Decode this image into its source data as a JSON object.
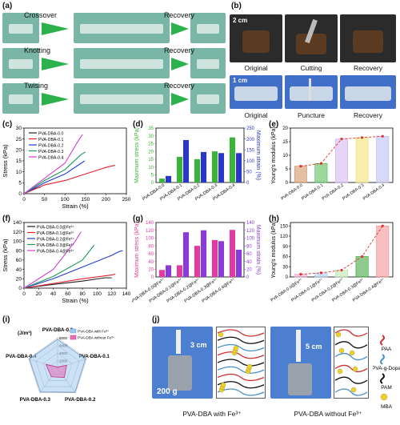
{
  "panel_letters": [
    "(a)",
    "(b)",
    "(c)",
    "(d)",
    "(e)",
    "(f)",
    "(g)",
    "(h)",
    "(i)",
    "(j)"
  ],
  "panel_a": {
    "rows": [
      {
        "left": "Crossover",
        "right": "Recovery"
      },
      {
        "left": "Knotting",
        "right": "Recovery"
      },
      {
        "left": "Twising",
        "right": "Recovery"
      }
    ]
  },
  "panel_b": {
    "scale1": "2 cm",
    "scale2": "1 cm",
    "row1": [
      "Original",
      "Cutting",
      "Recovery"
    ],
    "row2": [
      "Original",
      "Puncture",
      "Recovery"
    ]
  },
  "colors": {
    "s0": "#222222",
    "s1": "#e8202a",
    "s2": "#1f3bd6",
    "s3": "#1a9a5a",
    "s4": "#d43fd4",
    "green_bar": "#3bb33b",
    "blue_bar": "#2a35c9",
    "mag_bar": "#e23aa0",
    "purp_bar": "#8a3ad9"
  },
  "chart_data": [
    {
      "id": "c",
      "type": "line",
      "xlabel": "Strain (%)",
      "ylabel": "Stress (kPa)",
      "xlim": [
        0,
        250
      ],
      "ylim": [
        0,
        30
      ],
      "xticks": [
        0,
        50,
        100,
        150,
        200,
        250
      ],
      "yticks": [
        0,
        5,
        10,
        15,
        20,
        25,
        30
      ],
      "series": [
        {
          "name": "PVA-DBA-0.0",
          "x": [
            0,
            20,
            30,
            40
          ],
          "y": [
            0,
            2,
            2.5,
            3
          ]
        },
        {
          "name": "PVA-DBA-0.1",
          "x": [
            0,
            50,
            100,
            150,
            200,
            222
          ],
          "y": [
            0,
            4,
            6,
            9,
            12,
            13
          ]
        },
        {
          "name": "PVA-DBA-0.2",
          "x": [
            0,
            50,
            100,
            140,
            148
          ],
          "y": [
            0,
            5,
            9,
            14,
            15
          ]
        },
        {
          "name": "PVA-DBA-0.3",
          "x": [
            0,
            50,
            100,
            140,
            150
          ],
          "y": [
            0,
            6,
            11,
            18,
            19
          ]
        },
        {
          "name": "PVA-DBA-0.4",
          "x": [
            0,
            50,
            100,
            135,
            143
          ],
          "y": [
            0,
            7,
            14,
            25,
            27
          ]
        }
      ]
    },
    {
      "id": "d",
      "type": "bar",
      "ylabel": "Maximum stress (kPa)",
      "y2label": "Maximum strain (%)",
      "ylim": [
        0,
        35
      ],
      "y2lim": [
        0,
        250
      ],
      "yticks": [
        0,
        5,
        10,
        15,
        20,
        25,
        30,
        35
      ],
      "y2ticks": [
        0,
        50,
        100,
        150,
        200,
        250
      ],
      "categories": [
        "PVA-DBA-0.0",
        "PVA-DBA-0.1",
        "PVA-DBA-0.2",
        "PVA-DBA-0.3",
        "PVA-DBA-0.4"
      ],
      "series": [
        {
          "name": "Maximum stress",
          "values": [
            2.5,
            16.5,
            15,
            20,
            29
          ]
        },
        {
          "name": "Maximum strain",
          "values": [
            30,
            195,
            140,
            135,
            135
          ]
        }
      ]
    },
    {
      "id": "e",
      "type": "bar",
      "ylabel": "Young's modulus (kPa)",
      "ylim": [
        0,
        20
      ],
      "yticks": [
        0,
        5,
        10,
        15,
        20
      ],
      "categories": [
        "PVA-DBA-0.0",
        "PVA-DBA-0.1",
        "PVA-DBA-0.2",
        "PVA-DBA-0.3",
        "PVA-DBA-0.4"
      ],
      "values": [
        6,
        7,
        16,
        16.5,
        17
      ]
    },
    {
      "id": "f",
      "type": "line",
      "xlabel": "Strain (%)",
      "ylabel": "Stress (kPa)",
      "xlim": [
        0,
        140
      ],
      "ylim": [
        0,
        140
      ],
      "xticks": [
        0,
        20,
        40,
        60,
        80,
        100,
        120,
        140
      ],
      "yticks": [
        0,
        20,
        40,
        60,
        80,
        100,
        120,
        140
      ],
      "series": [
        {
          "name": "PVA-DBA-0.0@Fe³⁺",
          "x": [
            0,
            40,
            80,
            110,
            120
          ],
          "y": [
            0,
            8,
            15,
            22,
            22
          ]
        },
        {
          "name": "PVA-DBA-0.1@Fe³⁺",
          "x": [
            0,
            40,
            80,
            120,
            125
          ],
          "y": [
            0,
            10,
            20,
            28,
            30
          ]
        },
        {
          "name": "PVA-DBA-0.2@Fe³⁺",
          "x": [
            0,
            40,
            80,
            120,
            130,
            135
          ],
          "y": [
            0,
            20,
            45,
            70,
            78,
            80
          ]
        },
        {
          "name": "PVA-DBA-0.3@Fe³⁺",
          "x": [
            0,
            40,
            80,
            96
          ],
          "y": [
            0,
            25,
            60,
            92
          ]
        },
        {
          "name": "PVA-DBA-0.4@Fe³⁺",
          "x": [
            0,
            40,
            70,
            78
          ],
          "y": [
            0,
            40,
            100,
            120
          ]
        }
      ]
    },
    {
      "id": "g",
      "type": "bar",
      "ylabel": "Maximum stress (kPa)",
      "y2label": "Maximum strain (%)",
      "ylim": [
        0,
        140
      ],
      "y2lim": [
        0,
        140
      ],
      "yticks": [
        0,
        20,
        40,
        60,
        80,
        100,
        120,
        140
      ],
      "y2ticks": [
        0,
        20,
        40,
        60,
        80,
        100,
        120,
        140
      ],
      "categories": [
        "PVA-DBA-0.0@Fe³⁺",
        "PVA-DBA-0.1@Fe³⁺",
        "PVA-DBA-0.2@Fe³⁺",
        "PVA-DBA-0.3@Fe³⁺",
        "PVA-DBA-0.4@Fe³⁺"
      ],
      "series": [
        {
          "name": "Maximum stress",
          "values": [
            18,
            30,
            80,
            95,
            121
          ]
        },
        {
          "name": "Maximum strain",
          "values": [
            30,
            115,
            120,
            92,
            70
          ]
        }
      ]
    },
    {
      "id": "h",
      "type": "bar",
      "ylabel": "Young's modulus (kPa)",
      "ylim": [
        0,
        160
      ],
      "yticks": [
        0,
        30,
        60,
        90,
        120,
        150
      ],
      "categories": [
        "PVA-DBA-0.0@Fe³⁺",
        "PVA-DBA-0.1@Fe³⁺",
        "PVA-DBA-0.2@Fe³⁺",
        "PVA-DBA-0.3@Fe³⁺",
        "PVA-DBA-0.4@Fe³⁺"
      ],
      "values": [
        8,
        12,
        20,
        60,
        150
      ]
    },
    {
      "id": "i",
      "type": "radar",
      "unit": "(J/m³)",
      "axes": [
        "PVA-DBA-0.0",
        "PVA-DBA-0.1",
        "PVA-DBA-0.2",
        "PVA-DBA-0.3",
        "PVA-DBA-0.4"
      ],
      "rticks": [
        2000,
        4000,
        6000,
        8000
      ],
      "series": [
        {
          "name": "PVA-DBA with Fe³⁺",
          "values": [
            7600,
            7700,
            7800,
            7700,
            7800
          ]
        },
        {
          "name": "PVA-DBA without Fe³⁺",
          "values": [
            300,
            2500,
            3000,
            2800,
            3200
          ]
        }
      ]
    }
  ],
  "panel_j": {
    "weight": "200 g",
    "d1": "3 cm",
    "d2": "5 cm",
    "caption1": "PVA-DBA with Fe³⁺",
    "caption2": "PVA-DBA without Fe³⁺",
    "legend": [
      "PAA",
      "PVA-g-Dopa",
      "PAM",
      "MBA"
    ]
  }
}
